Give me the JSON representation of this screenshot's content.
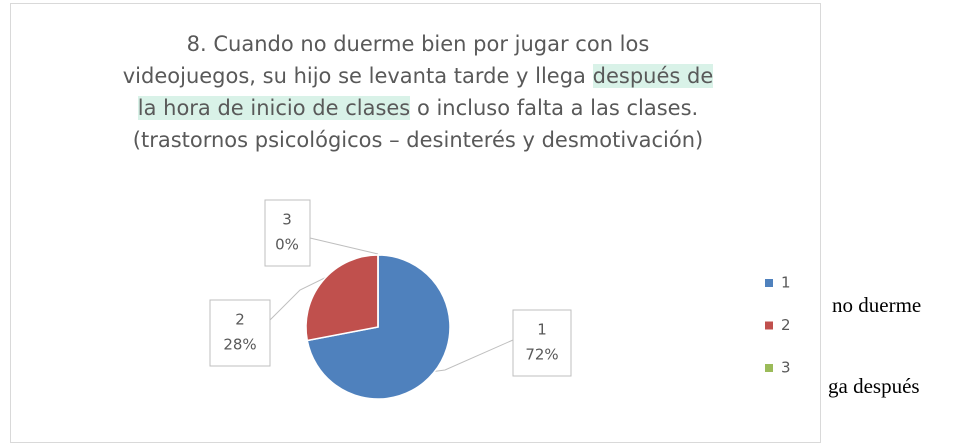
{
  "chart_data": {
    "type": "pie",
    "title": [
      "8. Cuando no duerme bien por jugar con los videojuegos, su hijo se levanta tarde y llega",
      "después de la hora de inicio de clases",
      "o incluso falta a las clases. (trastornos psicológicos – desinterés y desmotivación)"
    ],
    "title_highlight": [
      false,
      true,
      false
    ],
    "categories": [
      "1",
      "2",
      "3"
    ],
    "values": [
      72,
      28,
      0
    ],
    "value_labels": [
      "72%",
      "28%",
      "0%"
    ],
    "colors": [
      "#4f81bd",
      "#c0504d",
      "#9bbb59"
    ],
    "legend": "right"
  },
  "background_text": [
    "no duerme",
    "ga después"
  ]
}
